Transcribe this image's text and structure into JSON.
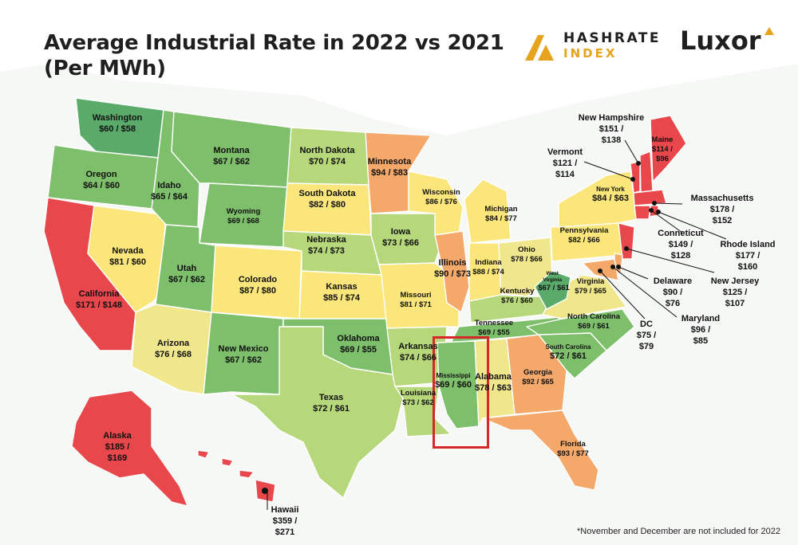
{
  "title_line1": "Average Industrial Rate in 2022 vs 2021",
  "title_line2": "(Per MWh)",
  "logo_hashrate_line1": "HASHRATE",
  "logo_hashrate_line2": "INDEX",
  "logo_luxor": "Luxor",
  "footnote": "*November and December are not included for 2022",
  "colors": {
    "red": "#e8484b",
    "orange": "#f4a86a",
    "yellow": "#fae67a",
    "lightyellow": "#f0e68c",
    "lightgreen": "#b6d77a",
    "green": "#7dbf6a",
    "darkgreen": "#5aab6a",
    "highlight": "#d62828"
  },
  "states": {
    "washington": {
      "name": "Washington",
      "value": "$60 / $58"
    },
    "oregon": {
      "name": "Oregon",
      "value": "$64 / $60"
    },
    "california": {
      "name": "California",
      "value": "$171 / $148"
    },
    "nevada": {
      "name": "Nevada",
      "value": "$81 / $60"
    },
    "idaho": {
      "name": "Idaho",
      "value": "$65 / $64"
    },
    "montana": {
      "name": "Montana",
      "value": "$67 / $62"
    },
    "wyoming": {
      "name": "Wyoming",
      "value": "$69 / $68"
    },
    "utah": {
      "name": "Utah",
      "value": "$67 / $62"
    },
    "arizona": {
      "name": "Arizona",
      "value": "$76 / $68"
    },
    "colorado": {
      "name": "Colorado",
      "value": "$87 / $80"
    },
    "new_mexico": {
      "name": "New Mexico",
      "value": "$67 / $62"
    },
    "north_dakota": {
      "name": "North Dakota",
      "value": "$70 / $74"
    },
    "south_dakota": {
      "name": "South Dakota",
      "value": "$82 / $80"
    },
    "nebraska": {
      "name": "Nebraska",
      "value": "$74 / $73"
    },
    "kansas": {
      "name": "Kansas",
      "value": "$85 / $74"
    },
    "oklahoma": {
      "name": "Oklahoma",
      "value": "$69 / $55"
    },
    "texas": {
      "name": "Texas",
      "value": "$72 / $61"
    },
    "minnesota": {
      "name": "Minnesota",
      "value": "$94 / $83"
    },
    "iowa": {
      "name": "Iowa",
      "value": "$73 / $66"
    },
    "missouri": {
      "name": "Missouri",
      "value": "$81 / $71"
    },
    "arkansas": {
      "name": "Arkansas",
      "value": "$74 / $66"
    },
    "louisiana": {
      "name": "Louisiana",
      "value": "$73 / $62"
    },
    "wisconsin": {
      "name": "Wisconsin",
      "value": "$86 / $76"
    },
    "illinois": {
      "name": "Illinois",
      "value": "$90 / $73"
    },
    "michigan": {
      "name": "Michigan",
      "value": "$84 / $77"
    },
    "indiana": {
      "name": "Indiana",
      "value": "$88 / $74"
    },
    "ohio": {
      "name": "Ohio",
      "value": "$78 / $66"
    },
    "kentucky": {
      "name": "Kentucky",
      "value": "$76 / $60"
    },
    "tennessee": {
      "name": "Tennessee",
      "value": "$69 / $55"
    },
    "mississippi": {
      "name": "Mississippi",
      "value": "$69 / $60"
    },
    "alabama": {
      "name": "Alabama",
      "value": "$78 / $63"
    },
    "georgia": {
      "name": "Georgia",
      "value": "$92 / $65"
    },
    "florida": {
      "name": "Florida",
      "value": "$93 / $77"
    },
    "south_carolina": {
      "name": "South Carolina",
      "value": "$72 / $61"
    },
    "north_carolina": {
      "name": "North Carolina",
      "value": "$69 / $61"
    },
    "virginia": {
      "name": "Virginia",
      "value": "$79 / $65"
    },
    "west_virginia": {
      "name": "West Virginia",
      "value": "$67 / $61"
    },
    "pennsylvania": {
      "name": "Pennsylvania",
      "value": "$82 / $66"
    },
    "new_york": {
      "name": "New York",
      "value": "$84 / $63"
    },
    "vermont": {
      "name": "Vermont",
      "value": "$121 / $114"
    },
    "new_hampshire": {
      "name": "New Hampshire",
      "value": "$151 / $138"
    },
    "maine": {
      "name": "Maine",
      "value": "$114 / $96"
    },
    "massachusetts": {
      "name": "Massachusetts",
      "value": "$178 / $152"
    },
    "connecticut": {
      "name": "Conneticut",
      "value": "$149 / $128"
    },
    "rhode_island": {
      "name": "Rhode Island",
      "value": "$177 / $160"
    },
    "new_jersey": {
      "name": "New Jersey",
      "value": "$125 / $107"
    },
    "delaware": {
      "name": "Delaware",
      "value": "$90 / $76"
    },
    "maryland": {
      "name": "Maryland",
      "value": "$96 / $85"
    },
    "dc": {
      "name": "DC",
      "value": "$75 / $79"
    },
    "alaska": {
      "name": "Alaska",
      "value": "$185 / $169"
    },
    "hawaii": {
      "name": "Hawaii",
      "value": "$359 / $271"
    }
  }
}
